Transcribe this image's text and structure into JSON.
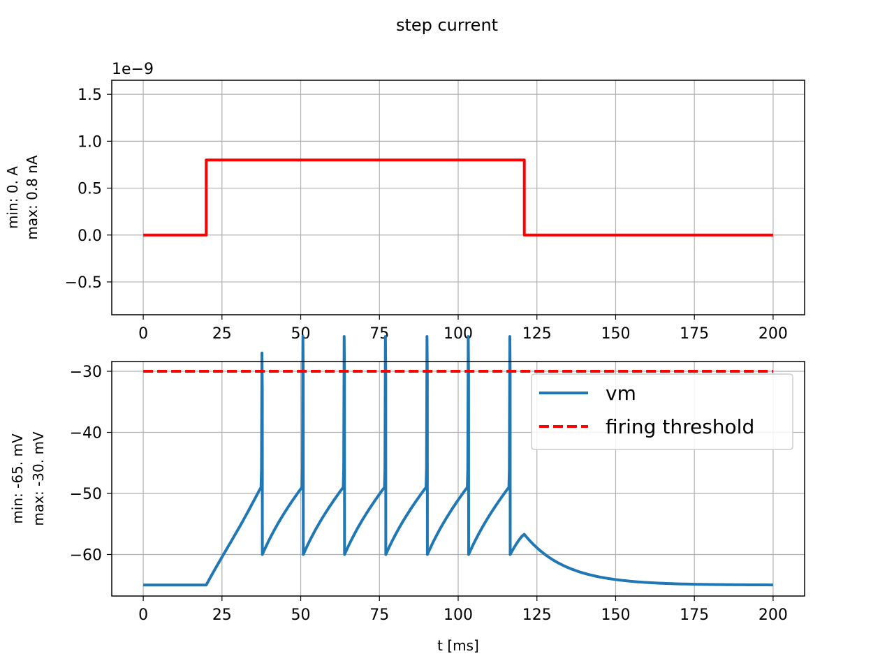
{
  "figure": {
    "suptitle": "step current"
  },
  "colors": {
    "current": "#ff0000",
    "vm": "#1f77b4",
    "threshold": "#ff0000",
    "grid": "#b0b0b0"
  },
  "chart_data": [
    {
      "type": "line",
      "title": "",
      "xlabel": "",
      "ylabel_lines": [
        "min: 0. A",
        "max: 0.8 nA"
      ],
      "offset_text": "1e−9",
      "grid": true,
      "xlim": [
        -10,
        210
      ],
      "ylim": [
        -0.85,
        1.65
      ],
      "xticks": [
        0,
        25,
        50,
        75,
        100,
        125,
        150,
        175,
        200
      ],
      "xtick_labels": [
        "0",
        "25",
        "50",
        "75",
        "100",
        "125",
        "150",
        "175",
        "200"
      ],
      "yticks": [
        -0.5,
        0.0,
        0.5,
        1.0,
        1.5
      ],
      "ytick_labels": [
        "−0.5",
        "0.0",
        "0.5",
        "1.0",
        "1.5"
      ],
      "series": [
        {
          "style": "solid",
          "color": "#ff0000",
          "x": [
            0,
            20,
            20,
            121,
            121,
            200
          ],
          "y": [
            0,
            0,
            0.8,
            0.8,
            0,
            0
          ]
        }
      ]
    },
    {
      "type": "line",
      "title": "",
      "xlabel": "t [ms]",
      "ylabel_lines": [
        "min: -65. mV",
        "max: -30. mV"
      ],
      "grid": true,
      "xlim": [
        -10,
        210
      ],
      "ylim": [
        -66.8,
        -28.4
      ],
      "xticks": [
        0,
        25,
        50,
        75,
        100,
        125,
        150,
        175,
        200
      ],
      "xtick_labels": [
        "0",
        "25",
        "50",
        "75",
        "100",
        "125",
        "150",
        "175",
        "200"
      ],
      "yticks": [
        -60,
        -50,
        -40,
        -30
      ],
      "ytick_labels": [
        "−60",
        "−50",
        "−40",
        "−30"
      ],
      "legend": {
        "position": "upper right",
        "entries": [
          "vm",
          "firing threshold"
        ]
      },
      "series": [
        {
          "name": "vm",
          "style": "solid",
          "color": "#1f77b4",
          "rest_mV": -65,
          "reset_mV": -60,
          "step_on_ms": 20,
          "step_off_ms": 121,
          "duration_ms": 200,
          "spike_times_ms": [
            37.8,
            50.8,
            63.9,
            77.0,
            90.2,
            103.3,
            116.5
          ],
          "spike_peaks_mV": [
            -33,
            -30.3,
            -30.3,
            -30.3,
            -30.3,
            -30.3,
            -30.3
          ],
          "post_step_peak": {
            "t": 121,
            "v": -56.7
          }
        },
        {
          "name": "firing threshold",
          "style": "dashed",
          "color": "#ff0000",
          "x": [
            0,
            200
          ],
          "y": [
            -30,
            -30
          ]
        }
      ]
    }
  ]
}
